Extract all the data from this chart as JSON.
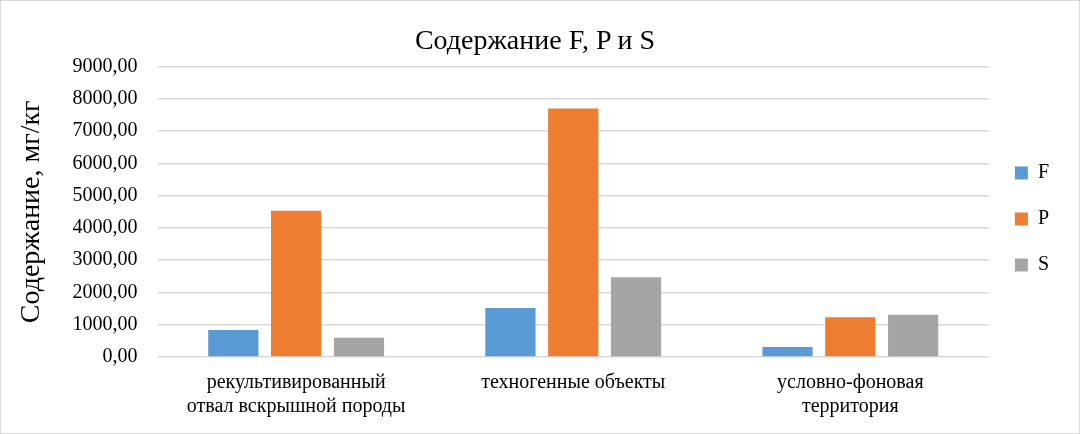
{
  "chart_data": {
    "type": "bar",
    "title": "Содержание F, P и S",
    "ylabel": "Содержание, мг/кг",
    "categories": [
      "рекультивированный отвал вскрышной породы",
      "техногенные объекты",
      "условно-фоновая территория"
    ],
    "series": [
      {
        "name": "F",
        "color": "#5b9bd5",
        "values": [
          840,
          1520,
          310
        ]
      },
      {
        "name": "P",
        "color": "#ed7d31",
        "values": [
          4530,
          7700,
          1230
        ]
      },
      {
        "name": "S",
        "color": "#a5a5a5",
        "values": [
          600,
          2470,
          1310
        ]
      }
    ],
    "ylim": [
      0,
      9000
    ],
    "yticks": [
      {
        "value": 0,
        "label": "0,00"
      },
      {
        "value": 1000,
        "label": "1000,00"
      },
      {
        "value": 2000,
        "label": "2000,00"
      },
      {
        "value": 3000,
        "label": "3000,00"
      },
      {
        "value": 4000,
        "label": "4000,00"
      },
      {
        "value": 5000,
        "label": "5000,00"
      },
      {
        "value": 6000,
        "label": "6000,00"
      },
      {
        "value": 7000,
        "label": "7000,00"
      },
      {
        "value": 8000,
        "label": "8000,00"
      },
      {
        "value": 9000,
        "label": "9000,00"
      }
    ],
    "grid": "y",
    "legend": "right"
  }
}
